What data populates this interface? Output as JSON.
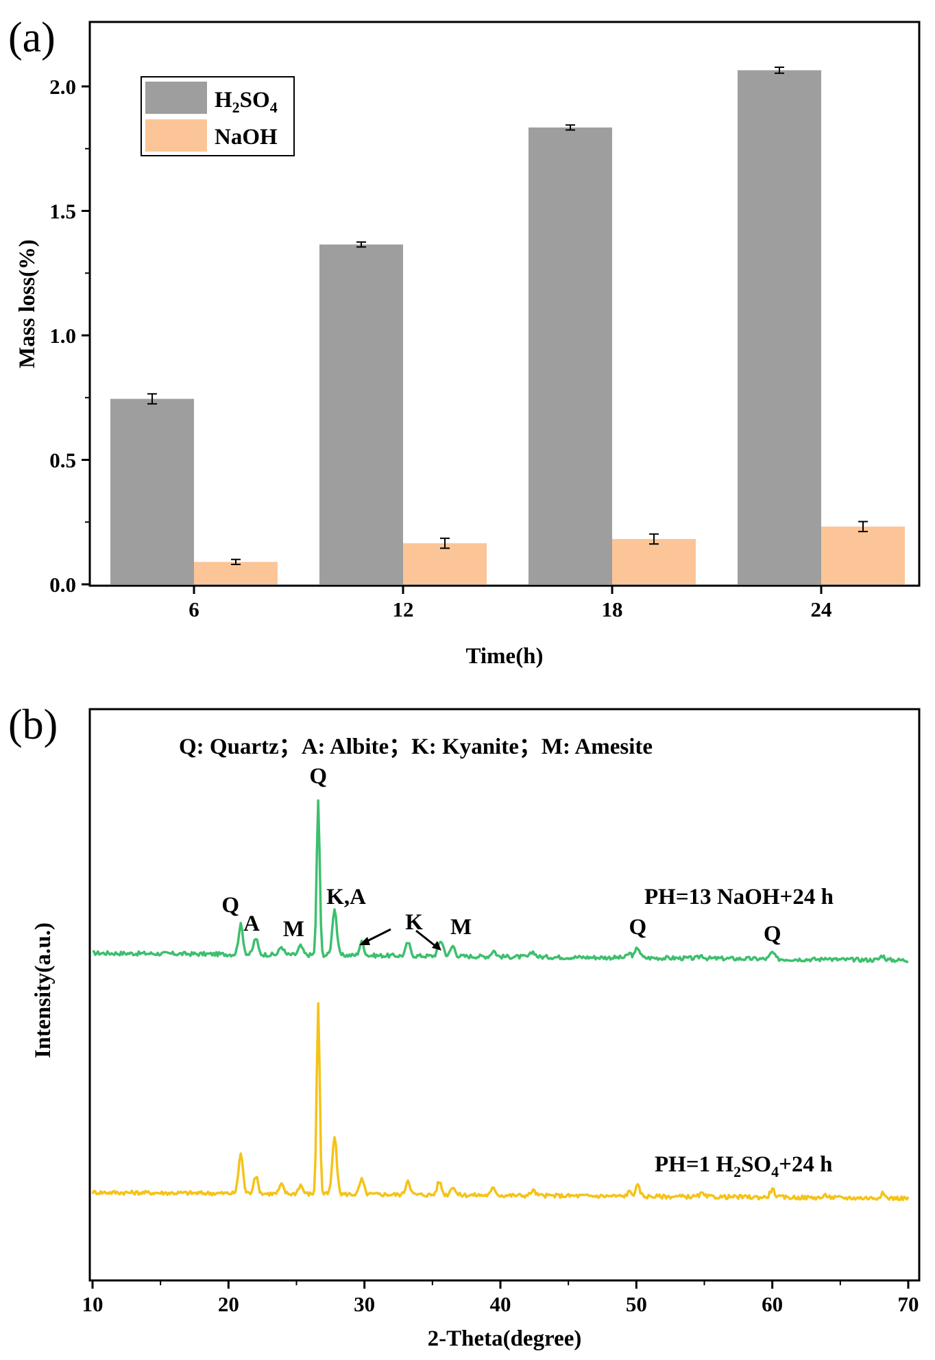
{
  "chart_data": [
    {
      "panel_label": "(a)",
      "type": "bar",
      "categories": [
        "6",
        "12",
        "18",
        "24"
      ],
      "series": [
        {
          "name": "H2SO4",
          "legend": {
            "base": "H",
            "sub1": "2",
            "mid": "SO",
            "sub2": "4"
          },
          "color": "#9e9e9e",
          "values": [
            0.745,
            1.365,
            1.835,
            2.065
          ],
          "errors": [
            0.02,
            0.01,
            0.01,
            0.012
          ]
        },
        {
          "name": "NaOH",
          "legend": {
            "base": "NaOH"
          },
          "color": "#fbc597",
          "values": [
            0.09,
            0.165,
            0.182,
            0.232
          ],
          "errors": [
            0.01,
            0.02,
            0.02,
            0.02
          ]
        }
      ],
      "xlabel": "Time(h)",
      "ylabel": "Mass loss(%)",
      "ylim": [
        0,
        2.2
      ],
      "yticks": [
        "0.0",
        "0.5",
        "1.0",
        "1.5",
        "2.0"
      ],
      "legend_position": "top-left",
      "grid": false
    },
    {
      "panel_label": "(b)",
      "type": "line",
      "xlabel": "2-Theta(degree)",
      "ylabel": "Intensity(a.u.)",
      "xlim": [
        10,
        70
      ],
      "xticks": [
        "10",
        "20",
        "30",
        "40",
        "50",
        "60",
        "70"
      ],
      "legend_text": "Q: Quartz；A: Albite；K: Kyanite；M: Amesite",
      "grid": false,
      "series": [
        {
          "name": "PH=13 NaOH+24 h",
          "label": {
            "parts": [
              "PH=13 NaOH+24 h"
            ]
          },
          "color": "#3dbf6e",
          "baseline_start": 0.48,
          "baseline_end": 0.0,
          "peaks": [
            [
              20.9,
              2.0
            ],
            [
              22.0,
              1.1
            ],
            [
              23.9,
              0.55
            ],
            [
              25.3,
              0.6
            ],
            [
              26.6,
              10.5
            ],
            [
              27.8,
              3.2
            ],
            [
              29.8,
              0.9
            ],
            [
              33.2,
              0.9
            ],
            [
              35.5,
              0.55
            ],
            [
              35.7,
              0.7
            ],
            [
              36.5,
              0.7
            ],
            [
              39.5,
              0.4
            ],
            [
              42.4,
              0.35
            ],
            [
              49.5,
              0.3
            ],
            [
              50.1,
              0.7
            ],
            [
              54.8,
              0.2
            ],
            [
              60.0,
              0.45
            ],
            [
              64.0,
              0.15
            ],
            [
              68.1,
              0.3
            ]
          ]
        },
        {
          "name": "PH=1 H2SO4+24 h",
          "label": {
            "parts": [
              "PH=1 H",
              "2",
              "SO",
              "4",
              "+24 h"
            ]
          },
          "color": "#f5c318",
          "baseline_start": 0.3,
          "baseline_end": -0.1,
          "peaks": [
            [
              20.9,
              2.7
            ],
            [
              22.0,
              1.2
            ],
            [
              23.9,
              0.6
            ],
            [
              25.3,
              0.6
            ],
            [
              26.6,
              13.0
            ],
            [
              27.8,
              3.9
            ],
            [
              29.8,
              1.0
            ],
            [
              33.2,
              1.0
            ],
            [
              35.5,
              0.9
            ],
            [
              36.5,
              0.6
            ],
            [
              39.5,
              0.5
            ],
            [
              42.4,
              0.35
            ],
            [
              49.5,
              0.3
            ],
            [
              50.1,
              0.7
            ],
            [
              54.8,
              0.2
            ],
            [
              60.0,
              0.55
            ],
            [
              64.0,
              0.15
            ],
            [
              68.1,
              0.3
            ]
          ]
        }
      ],
      "annotations": [
        {
          "text": "Q",
          "x": 26.6
        },
        {
          "text": "Q",
          "x": 20.9
        },
        {
          "text": "A",
          "x": 22.0
        },
        {
          "text": "M",
          "x": 25.3
        },
        {
          "text": "K,A",
          "x": 27.8
        },
        {
          "text": "K",
          "x": 33.2
        },
        {
          "text": "M",
          "x": 36.5
        },
        {
          "text": "Q",
          "x": 50.1
        },
        {
          "text": "Q",
          "x": 60.0
        }
      ]
    }
  ]
}
